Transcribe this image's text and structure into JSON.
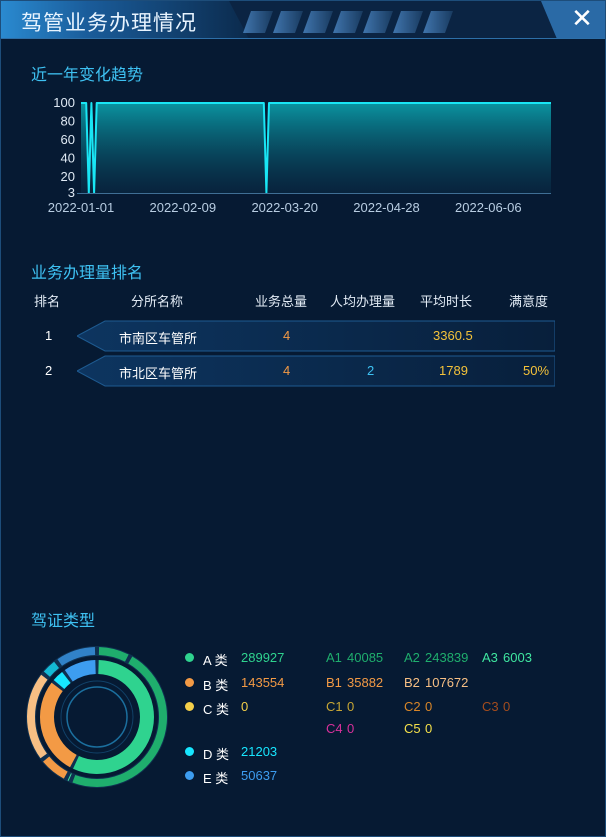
{
  "window": {
    "title": "驾管业务办理情况",
    "close_symbol": "✕"
  },
  "trend": {
    "section_title": "近一年变化趋势",
    "chart_data": {
      "type": "area",
      "x_tick_labels": [
        "2022-01-01",
        "2022-02-09",
        "2022-03-20",
        "2022-04-28",
        "2022-06-06"
      ],
      "y_tick_labels": [
        "100",
        "80",
        "60",
        "40",
        "20",
        "3"
      ],
      "ylim": [
        3,
        100
      ],
      "grid": false,
      "legend": "none",
      "series": [
        {
          "color": "#19e6f5",
          "points": [
            [
              "2022-01-01",
              100
            ],
            [
              "2022-01-03",
              100
            ],
            [
              "2022-01-04",
              3
            ],
            [
              "2022-01-05",
              100
            ],
            [
              "2022-01-06",
              3
            ],
            [
              "2022-01-07",
              100
            ],
            [
              "2022-03-12",
              100
            ],
            [
              "2022-03-13",
              3
            ],
            [
              "2022-03-14",
              100
            ],
            [
              "2022-06-30",
              100
            ]
          ]
        }
      ]
    }
  },
  "ranking": {
    "section_title": "业务办理量排名",
    "columns": [
      "排名",
      "分所名称",
      "业务总量",
      "人均办理量",
      "平均时长",
      "满意度"
    ],
    "rows": [
      {
        "rank": "1",
        "name": "市南区车管所",
        "total": "4",
        "per_capita": "",
        "avg_duration": "3360.5",
        "satisfaction": ""
      },
      {
        "rank": "2",
        "name": "市北区车管所",
        "total": "4",
        "per_capita": "2",
        "avg_duration": "1789",
        "satisfaction": "50%"
      }
    ]
  },
  "license": {
    "section_title": "驾证类型",
    "chart_data": {
      "type": "pie",
      "variant": "double-ring",
      "slices": [
        {
          "label": "A 类",
          "value": 289927,
          "color": "#2fd38f"
        },
        {
          "label": "B 类",
          "value": 143554,
          "color": "#f39a45"
        },
        {
          "label": "C 类",
          "value": 0,
          "color": "#f4cf4a"
        },
        {
          "label": "D 类",
          "value": 21203,
          "color": "#17e6ff"
        },
        {
          "label": "E 类",
          "value": 50637,
          "color": "#3d9df0"
        }
      ]
    },
    "categories": [
      {
        "label": "A 类",
        "value": "289927",
        "color": "#2fd38f",
        "subs": [
          {
            "label": "A1",
            "value": "40085",
            "color": "#1fae6d"
          },
          {
            "label": "A2",
            "value": "243839",
            "color": "#1fae6d"
          },
          {
            "label": "A3",
            "value": "6003",
            "color": "#3fe6a0"
          }
        ]
      },
      {
        "label": "B 类",
        "value": "143554",
        "color": "#f39a45",
        "subs": [
          {
            "label": "B1",
            "value": "35882",
            "color": "#f39a45"
          },
          {
            "label": "B2",
            "value": "107672",
            "color": "#f7bf84"
          }
        ]
      },
      {
        "label": "C 类",
        "value": "0",
        "color": "#f4cf4a",
        "subs": [
          {
            "label": "C1",
            "value": "0",
            "color": "#c7a634"
          },
          {
            "label": "C2",
            "value": "0",
            "color": "#d98628"
          },
          {
            "label": "C3",
            "value": "0",
            "color": "#a34c1e"
          },
          {
            "label": "C4",
            "value": "0",
            "color": "#d7309a"
          },
          {
            "label": "C5",
            "value": "0",
            "color": "#f4e04a"
          }
        ]
      },
      {
        "label": "D 类",
        "value": "21203",
        "color": "#17e6ff",
        "subs": []
      },
      {
        "label": "E 类",
        "value": "50637",
        "color": "#3d9df0",
        "subs": []
      }
    ]
  }
}
